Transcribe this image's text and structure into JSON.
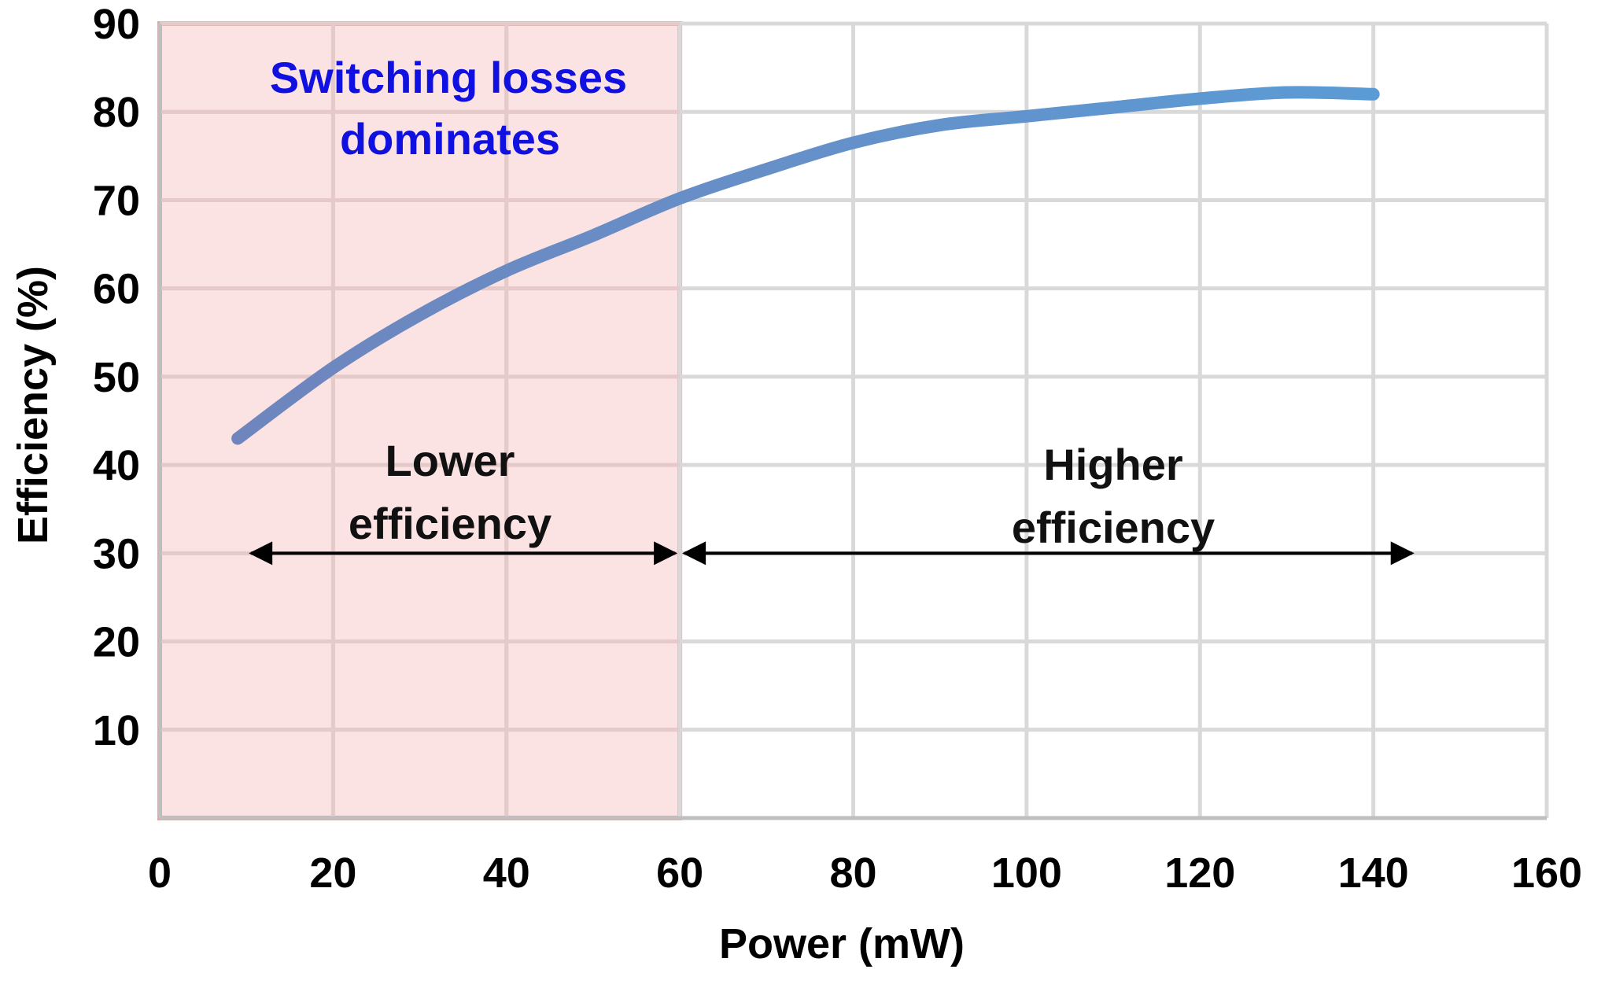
{
  "chart_data": {
    "type": "line",
    "xlabel": "Power (mW)",
    "ylabel": "Efficiency (%)",
    "xlim": [
      0,
      160
    ],
    "ylim": [
      0,
      90
    ],
    "x_ticks": [
      "0",
      "20",
      "40",
      "60",
      "80",
      "100",
      "120",
      "140",
      "160"
    ],
    "y_ticks": [
      "10",
      "20",
      "30",
      "40",
      "50",
      "60",
      "70",
      "80",
      "90"
    ],
    "grid": true,
    "series": [
      {
        "color_start": "#6f85bd",
        "color_end": "#5b9bd5",
        "x": [
          9,
          20,
          30,
          40,
          50,
          60,
          70,
          80,
          90,
          100,
          110,
          120,
          130,
          140
        ],
        "y": [
          43,
          51,
          57,
          62,
          66,
          70.2,
          73.5,
          76.5,
          78.5,
          79.5,
          80.5,
          81.5,
          82.2,
          82
        ]
      }
    ],
    "shaded_region": {
      "x_start": 0,
      "x_end": 60,
      "fill": "#fbe3e3",
      "border": "#d9a9a9"
    },
    "annotations": {
      "switching_line1": "Switching losses",
      "switching_line2": "dominates",
      "lower_line1": "Lower",
      "lower_line2": "efficiency",
      "higher_line1": "Higher",
      "higher_line2": "efficiency"
    },
    "arrows": [
      {
        "y": 30,
        "x_start": 10,
        "x_end": 60
      },
      {
        "y": 30,
        "x_start": 60,
        "x_end": 145
      }
    ]
  }
}
